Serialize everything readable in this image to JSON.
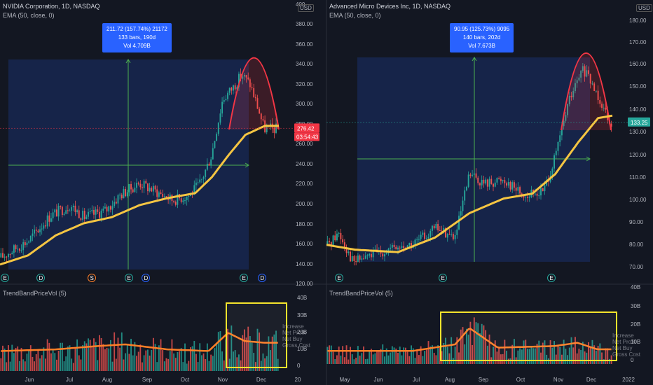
{
  "charts": [
    {
      "symbol_title": "NVIDIA Corporation, 1D, NASDAQ",
      "ema_label": "EMA (50, close, 0)",
      "indicator_label": "TrendBandPriceVol (5)",
      "currency": "USD",
      "price_ticks": [
        "400",
        "380.00",
        "360.00",
        "340.00",
        "320.00",
        "300.00",
        "280.00",
        "260.00",
        "240.00",
        "220.00",
        "200.00",
        "180.00",
        "160.00",
        "140.00",
        "120.00"
      ],
      "volume_ticks": [
        "40B",
        "30B",
        "20B",
        "10B",
        "0"
      ],
      "x_ticks": [
        "Jun",
        "Jul",
        "Aug",
        "Sep",
        "Oct",
        "Nov",
        "Dec",
        "20"
      ],
      "last_price": "276.42",
      "countdown": "03:54:43",
      "measure_tooltip": [
        "211.72 (157.74%) 21172",
        "133 bars, 190d",
        "Vol 4.709B"
      ],
      "event_badges": [
        "E",
        "D",
        "S",
        "E",
        "D",
        "E",
        "D"
      ],
      "legend_overlap_lines": [
        "Increase",
        "Net Profit",
        "Net Buy",
        "Gross Cost"
      ],
      "colors": {
        "up": "#26a69a",
        "down": "#ef5350",
        "ema": "#f5c542",
        "arc": "#f23645",
        "highlight": "#f5e42c",
        "measure": "#2962ff",
        "vol_line": "#ff7f27"
      }
    },
    {
      "symbol_title": "Advanced Micro Devices Inc, 1D, NASDAQ",
      "ema_label": "EMA (50, close, 0)",
      "indicator_label": "TrendBandPriceVol (5)",
      "currency": "USD",
      "price_ticks": [
        "180.00",
        "170.00",
        "160.00",
        "150.00",
        "140.00",
        "130.00",
        "120.00",
        "110.00",
        "100.00",
        "90.00",
        "80.00",
        "70.00"
      ],
      "volume_ticks": [
        "40B",
        "30B",
        "20B",
        "10B",
        "0"
      ],
      "x_ticks": [
        "May",
        "Jun",
        "Jul",
        "Aug",
        "Sep",
        "Oct",
        "Nov",
        "Dec",
        "2022"
      ],
      "last_price": "133.25",
      "measure_tooltip": [
        "90.95 (125.73%) 9095",
        "140 bars, 202d",
        "Vol 7.673B"
      ],
      "event_badges": [
        "E",
        "E",
        "E"
      ],
      "legend_overlap_lines": [
        "Increase",
        "Net Profit",
        "Net Buy",
        "Gross Cost"
      ],
      "colors": {
        "up": "#26a69a",
        "down": "#ef5350",
        "ema": "#f5c542",
        "arc": "#f23645",
        "highlight": "#f5e42c",
        "measure": "#2962ff",
        "vol_line": "#ff7f27"
      }
    }
  ],
  "chart_data": [
    {
      "type": "candlestick",
      "title": "NVIDIA Corporation, 1D, NASDAQ",
      "ylim": [
        120,
        400
      ],
      "x": [
        "Jun",
        "Jul",
        "Aug",
        "Sep",
        "Oct",
        "Nov",
        "Dec"
      ],
      "close_trend": [
        [
          0,
          148
        ],
        [
          0.1,
          165
        ],
        [
          0.18,
          190
        ],
        [
          0.25,
          200
        ],
        [
          0.3,
          188
        ],
        [
          0.38,
          195
        ],
        [
          0.43,
          210
        ],
        [
          0.5,
          222
        ],
        [
          0.55,
          215
        ],
        [
          0.62,
          205
        ],
        [
          0.68,
          210
        ],
        [
          0.72,
          222
        ],
        [
          0.76,
          250
        ],
        [
          0.8,
          305
        ],
        [
          0.84,
          318
        ],
        [
          0.87,
          330
        ],
        [
          0.9,
          320
        ],
        [
          0.93,
          295
        ],
        [
          0.95,
          276
        ]
      ],
      "ema_trend": [
        [
          0,
          141
        ],
        [
          0.1,
          150
        ],
        [
          0.2,
          170
        ],
        [
          0.3,
          182
        ],
        [
          0.4,
          188
        ],
        [
          0.5,
          200
        ],
        [
          0.6,
          207
        ],
        [
          0.7,
          212
        ],
        [
          0.76,
          228
        ],
        [
          0.82,
          250
        ],
        [
          0.88,
          270
        ],
        [
          0.95,
          279
        ]
      ],
      "volume_trend": [
        [
          0,
          12
        ],
        [
          0.2,
          13
        ],
        [
          0.35,
          15
        ],
        [
          0.45,
          16
        ],
        [
          0.6,
          13
        ],
        [
          0.75,
          12
        ],
        [
          0.82,
          23
        ],
        [
          0.88,
          18
        ],
        [
          0.95,
          17
        ]
      ],
      "last_price": 276.42
    },
    {
      "type": "candlestick",
      "title": "Advanced Micro Devices Inc, 1D, NASDAQ",
      "ylim": [
        70,
        180
      ],
      "x": [
        "May",
        "Jun",
        "Jul",
        "Aug",
        "Sep",
        "Oct",
        "Nov",
        "Dec",
        "2022"
      ],
      "close_trend": [
        [
          0,
          83
        ],
        [
          0.04,
          88
        ],
        [
          0.09,
          76
        ],
        [
          0.18,
          80
        ],
        [
          0.3,
          83
        ],
        [
          0.38,
          90
        ],
        [
          0.45,
          86
        ],
        [
          0.5,
          112
        ],
        [
          0.55,
          108
        ],
        [
          0.62,
          110
        ],
        [
          0.7,
          103
        ],
        [
          0.76,
          105
        ],
        [
          0.8,
          118
        ],
        [
          0.85,
          142
        ],
        [
          0.9,
          155
        ],
        [
          0.95,
          145
        ],
        [
          1.0,
          133
        ]
      ],
      "ema_trend": [
        [
          0,
          83
        ],
        [
          0.1,
          81
        ],
        [
          0.25,
          80
        ],
        [
          0.38,
          86
        ],
        [
          0.5,
          96
        ],
        [
          0.62,
          102
        ],
        [
          0.72,
          104
        ],
        [
          0.8,
          112
        ],
        [
          0.88,
          125
        ],
        [
          0.95,
          135
        ],
        [
          1.0,
          136
        ]
      ],
      "volume_trend": [
        [
          0,
          8
        ],
        [
          0.3,
          8
        ],
        [
          0.45,
          12
        ],
        [
          0.5,
          22
        ],
        [
          0.6,
          10
        ],
        [
          0.8,
          11
        ],
        [
          0.88,
          13
        ],
        [
          0.95,
          9
        ]
      ],
      "last_price": 133.25
    }
  ]
}
